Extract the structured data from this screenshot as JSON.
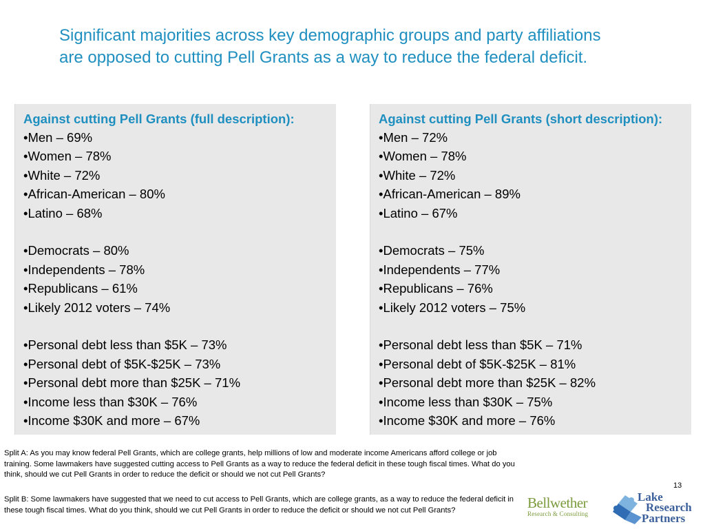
{
  "title": "Significant majorities across key demographic groups and party affiliations are opposed to cutting Pell Grants as a way to reduce the federal deficit.",
  "left_panel": {
    "heading": "Against cutting Pell Grants (full description):",
    "groups": [
      [
        "•Men – 69%",
        "•Women – 78%",
        "•White – 72%",
        "•African-American – 80%",
        "•Latino – 68%"
      ],
      [
        "•Democrats – 80%",
        "•Independents – 78%",
        "•Republicans – 61%",
        "•Likely 2012 voters  – 74%"
      ],
      [
        "•Personal debt less than $5K – 73%",
        "•Personal debt of $5K-$25K – 73%",
        "•Personal debt more than $25K – 71%",
        "•Income less than $30K – 76%",
        "•Income $30K and more – 67%"
      ]
    ]
  },
  "right_panel": {
    "heading": "Against cutting Pell Grants (short description):",
    "groups": [
      [
        "•Men – 72%",
        "•Women – 78%",
        "•White – 72%",
        "•African-American – 89%",
        "•Latino – 67%"
      ],
      [
        "•Democrats – 75%",
        "•Independents – 77%",
        "•Republicans – 76%",
        "•Likely 2012 voters  – 75%"
      ],
      [
        "•Personal debt less than $5K – 71%",
        "•Personal debt of $5K-$25K – 81%",
        "•Personal debt more than $25K – 82%",
        "•Income less than $30K – 75%",
        "•Income $30K and more – 76%"
      ]
    ]
  },
  "footnotes": {
    "split_a": "Split A: As you may know federal Pell Grants, which are college grants, help millions of low and moderate income Americans afford college or job training. Some lawmakers have suggested cutting access to Pell Grants as a way to reduce the federal deficit in these tough fiscal times. What do you think, should we cut Pell Grants in order to reduce the deficit or should we not cut Pell Grants?",
    "split_b": "Split B: Some lawmakers have suggested that we need to cut access to Pell Grants, which are college grants, as a way to reduce the federal deficit in these tough fiscal times. What do you think, should we cut Pell Grants in order to reduce the deficit or should we not cut Pell Grants?"
  },
  "page_number": "13",
  "logos": {
    "bellwether_name": "Bellwether",
    "bellwether_sub": "Research & Consulting",
    "lake_line1": "Lake",
    "lake_line2": "Research",
    "lake_line3": "Partners"
  },
  "colors": {
    "accent": "#1f8fc0",
    "panel_bg": "#e8e8e8",
    "bellwether_green": "#7a9a3a",
    "lake_blue": "#3a5f9a"
  }
}
